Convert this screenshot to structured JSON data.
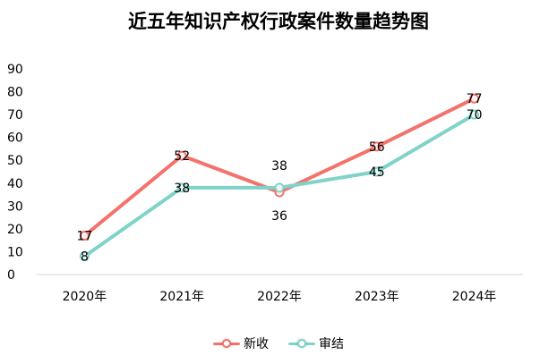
{
  "chart_data": {
    "type": "line",
    "title": "近五年知识产权行政案件数量趋势图",
    "categories": [
      "2020年",
      "2021年",
      "2022年",
      "2023年",
      "2024年"
    ],
    "series": [
      {
        "name": "新收",
        "values": [
          17,
          52,
          36,
          56,
          77
        ],
        "color": "#f4726c"
      },
      {
        "name": "审结",
        "values": [
          8,
          38,
          38,
          45,
          70
        ],
        "color": "#7fd3c8"
      }
    ],
    "ylim": [
      0,
      90
    ],
    "yticks": [
      0,
      10,
      20,
      30,
      40,
      50,
      60,
      70,
      80,
      90
    ],
    "xlabel": "",
    "ylabel": "",
    "grid": false,
    "legend": "bottom"
  }
}
